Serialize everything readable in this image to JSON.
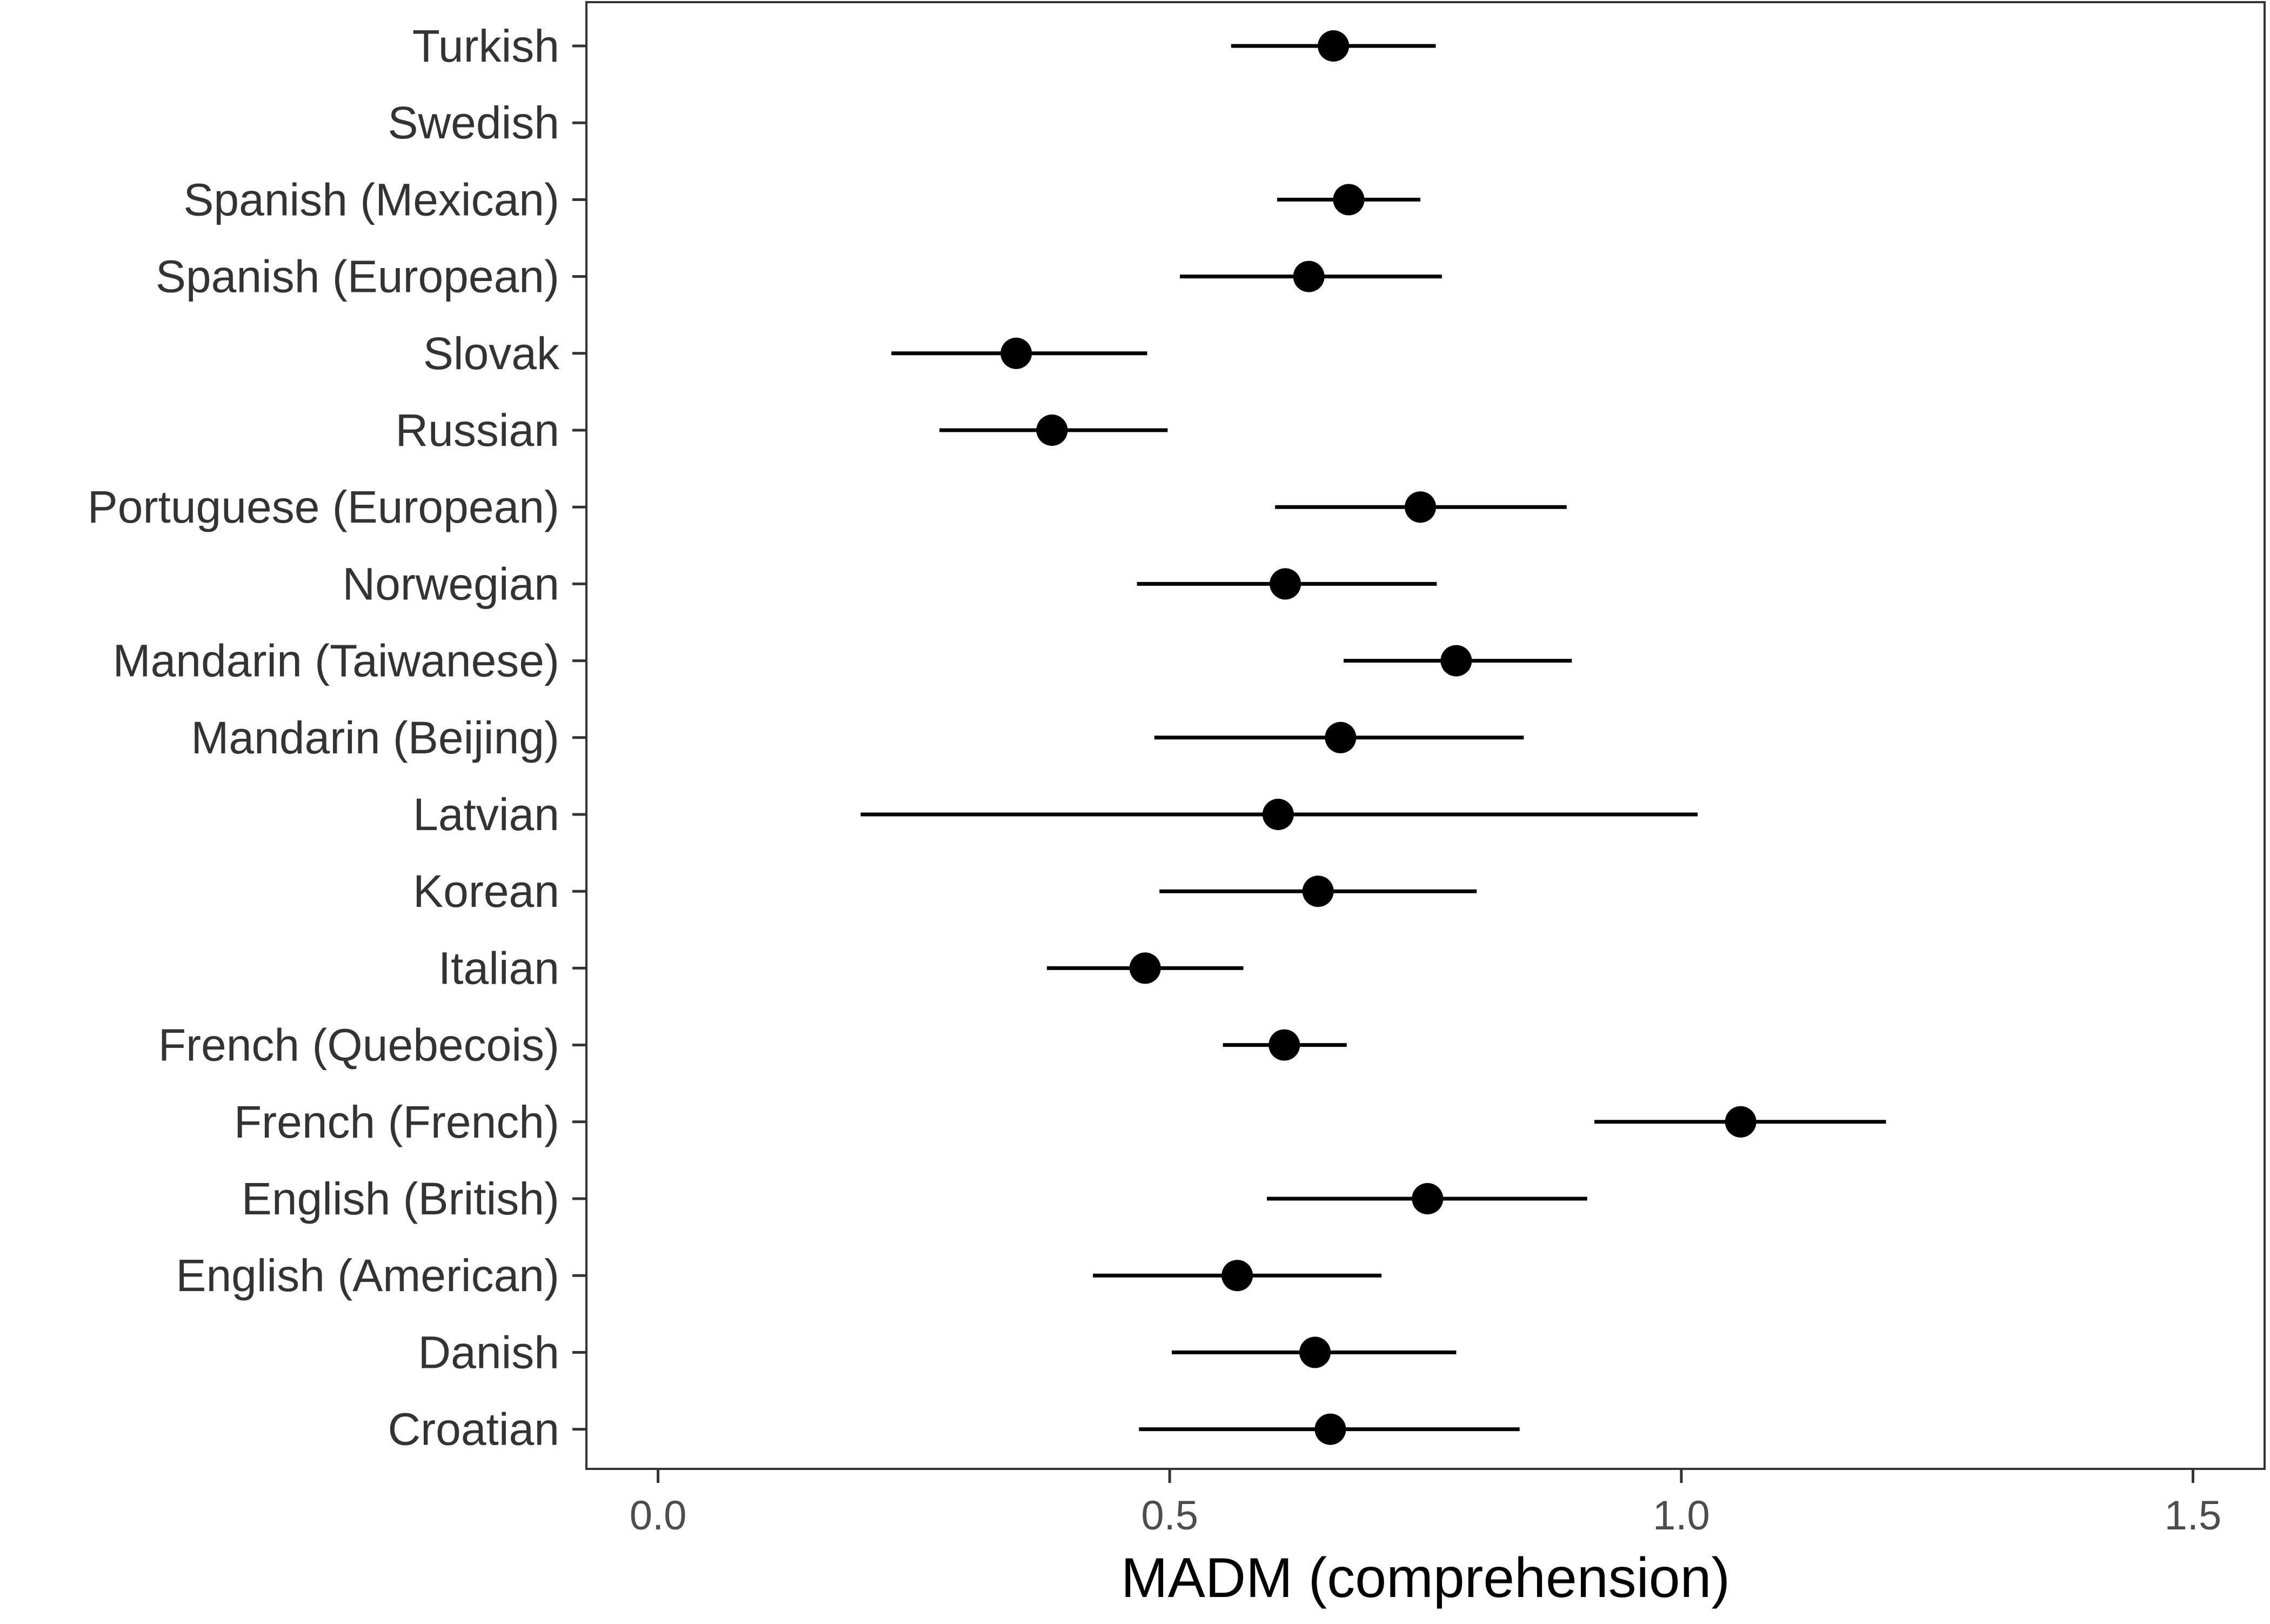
{
  "chart_data": {
    "type": "scatter",
    "subtype": "point-range",
    "title": "",
    "xlabel": "MADM (comprehension)",
    "ylabel": "",
    "xlim": [
      -0.07,
      1.57
    ],
    "xticks": [
      0.0,
      0.5,
      1.0,
      1.5
    ],
    "xtick_labels": [
      "0.0",
      "0.5",
      "1.0",
      "1.5"
    ],
    "grid": false,
    "legend": "none",
    "colors": {
      "point": "#000000",
      "interval": "#000000",
      "panel_border": "#333333",
      "text": "#333333"
    },
    "categories": [
      "Turkish",
      "Swedish",
      "Spanish (Mexican)",
      "Spanish (European)",
      "Slovak",
      "Russian",
      "Portuguese (European)",
      "Norwegian",
      "Mandarin (Taiwanese)",
      "Mandarin (Beijing)",
      "Latvian",
      "Korean",
      "Italian",
      "French (Quebecois)",
      "French (French)",
      "English (British)",
      "English (American)",
      "Danish",
      "Croatian"
    ],
    "points": [
      {
        "category": "Turkish",
        "value": 0.66,
        "lower": 0.56,
        "upper": 0.76
      },
      {
        "category": "Swedish",
        "value": null,
        "lower": null,
        "upper": null
      },
      {
        "category": "Spanish (Mexican)",
        "value": 0.675,
        "lower": 0.605,
        "upper": 0.745
      },
      {
        "category": "Spanish (European)",
        "value": 0.636,
        "lower": 0.51,
        "upper": 0.766
      },
      {
        "category": "Slovak",
        "value": 0.35,
        "lower": 0.228,
        "upper": 0.478
      },
      {
        "category": "Russian",
        "value": 0.385,
        "lower": 0.275,
        "upper": 0.498
      },
      {
        "category": "Portuguese (European)",
        "value": 0.745,
        "lower": 0.603,
        "upper": 0.888
      },
      {
        "category": "Norwegian",
        "value": 0.613,
        "lower": 0.468,
        "upper": 0.761
      },
      {
        "category": "Mandarin (Taiwanese)",
        "value": 0.78,
        "lower": 0.67,
        "upper": 0.893
      },
      {
        "category": "Mandarin (Beijing)",
        "value": 0.667,
        "lower": 0.485,
        "upper": 0.846
      },
      {
        "category": "Latvian",
        "value": 0.606,
        "lower": 0.198,
        "upper": 1.016
      },
      {
        "category": "Korean",
        "value": 0.645,
        "lower": 0.49,
        "upper": 0.8
      },
      {
        "category": "Italian",
        "value": 0.476,
        "lower": 0.38,
        "upper": 0.572
      },
      {
        "category": "French (Quebecois)",
        "value": 0.612,
        "lower": 0.552,
        "upper": 0.673
      },
      {
        "category": "French (French)",
        "value": 1.058,
        "lower": 0.915,
        "upper": 1.2
      },
      {
        "category": "English (British)",
        "value": 0.752,
        "lower": 0.595,
        "upper": 0.908
      },
      {
        "category": "English (American)",
        "value": 0.566,
        "lower": 0.425,
        "upper": 0.707
      },
      {
        "category": "Danish",
        "value": 0.642,
        "lower": 0.502,
        "upper": 0.78
      },
      {
        "category": "Croatian",
        "value": 0.657,
        "lower": 0.47,
        "upper": 0.842
      }
    ]
  }
}
